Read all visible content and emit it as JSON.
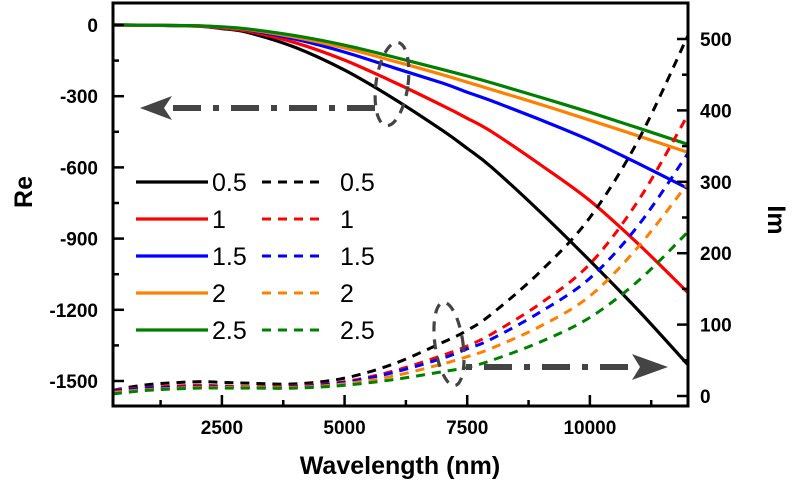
{
  "chart_data": {
    "type": "line",
    "title": "",
    "xlabel": "Wavelength (nm)",
    "ylabel_left": "Re",
    "ylabel_right": "Im",
    "xlim": [
      280,
      12000
    ],
    "ylim_left": [
      -1610,
      90
    ],
    "ylim_right": [
      -3,
      530
    ],
    "x_ticks": [
      2500,
      5000,
      7500,
      10000
    ],
    "x_tick_labels": [
      "2500",
      "5000",
      "7500",
      "10000"
    ],
    "y_left_ticks": [
      0,
      -300,
      -600,
      -900,
      -1200,
      -1500
    ],
    "y_left_tick_labels": [
      "0",
      "-300",
      "-600",
      "-900",
      "-1200",
      "-1500"
    ],
    "y_right_ticks": [
      0,
      100,
      200,
      300,
      400,
      500
    ],
    "y_right_tick_labels": [
      "0",
      "100",
      "200",
      "300",
      "400",
      "500"
    ],
    "grid": false,
    "legend_placement": "left-center",
    "x": [
      280,
      1000,
      2000,
      2500,
      3000,
      4000,
      5000,
      6000,
      7000,
      7500,
      8000,
      9000,
      10000,
      11000,
      12000
    ],
    "series": [
      {
        "name": "0.5",
        "axis": "left",
        "part": "Re",
        "style": "solid",
        "color": "#000000",
        "values": [
          0,
          -1,
          -5,
          -15,
          -30,
          -95,
          -190,
          -310,
          -445,
          -520,
          -600,
          -790,
          -993,
          -1205,
          -1432
        ]
      },
      {
        "name": "1",
        "axis": "left",
        "part": "Re",
        "style": "solid",
        "color": "#ff0000",
        "values": [
          0,
          -1,
          -5,
          -13,
          -25,
          -75,
          -148,
          -240,
          -340,
          -393,
          -450,
          -590,
          -740,
          -925,
          -1128
        ]
      },
      {
        "name": "1.5",
        "axis": "left",
        "part": "Re",
        "style": "solid",
        "color": "#0000ff",
        "values": [
          0,
          -1,
          -4,
          -10,
          -20,
          -60,
          -114,
          -180,
          -245,
          -283,
          -320,
          -400,
          -486,
          -585,
          -689
        ]
      },
      {
        "name": "2",
        "axis": "left",
        "part": "Re",
        "style": "solid",
        "color": "#ff8000",
        "values": [
          0,
          -1,
          -4,
          -9,
          -18,
          -52,
          -97,
          -152,
          -210,
          -241,
          -272,
          -335,
          -401,
          -468,
          -537
        ]
      },
      {
        "name": "2.5",
        "axis": "left",
        "part": "Re",
        "style": "solid",
        "color": "#008000",
        "values": [
          0,
          -1,
          -3,
          -8,
          -16,
          -45,
          -85,
          -135,
          -188,
          -215,
          -244,
          -305,
          -368,
          -435,
          -503
        ]
      },
      {
        "name": "0.5",
        "axis": "right",
        "part": "Im",
        "style": "dashed",
        "color": "#000000",
        "values": [
          8,
          16,
          20,
          19,
          18,
          17,
          25,
          45,
          75,
          92,
          115,
          175,
          250,
          360,
          505
        ]
      },
      {
        "name": "1",
        "axis": "right",
        "part": "Im",
        "style": "dashed",
        "color": "#ff0000",
        "values": [
          8,
          12,
          15,
          14,
          13,
          14,
          20,
          35,
          57,
          70,
          87,
          130,
          185,
          275,
          394
        ]
      },
      {
        "name": "1.5",
        "axis": "right",
        "part": "Im",
        "style": "dashed",
        "color": "#0000ff",
        "values": [
          7,
          11,
          13,
          13,
          12,
          13,
          19,
          33,
          53,
          66,
          80,
          118,
          165,
          240,
          340
        ]
      },
      {
        "name": "2",
        "axis": "right",
        "part": "Im",
        "style": "dashed",
        "color": "#ff8000",
        "values": [
          5,
          9,
          12,
          12,
          12,
          12,
          17,
          28,
          45,
          55,
          67,
          98,
          140,
          210,
          298
        ]
      },
      {
        "name": "2.5",
        "axis": "right",
        "part": "Im",
        "style": "dashed",
        "color": "#008000",
        "values": [
          3,
          8,
          11,
          11,
          11,
          11,
          15,
          23,
          34,
          40,
          50,
          76,
          110,
          162,
          230
        ]
      }
    ],
    "annotations": [
      {
        "type": "ellipse-arrow",
        "target_axis": "left",
        "direction": "left",
        "near_x": 6000
      },
      {
        "type": "ellipse-arrow",
        "target_axis": "right",
        "direction": "right",
        "near_x": 7100
      }
    ],
    "legend": {
      "solid_entries": [
        "0.5",
        "1",
        "1.5",
        "2",
        "2.5"
      ],
      "dashed_entries": [
        "0.5",
        "1",
        "1.5",
        "2",
        "2.5"
      ]
    }
  }
}
